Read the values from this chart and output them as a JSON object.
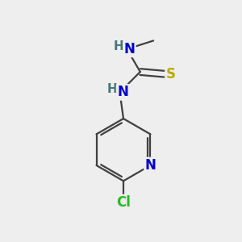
{
  "bg_color": "#eeeeee",
  "atom_colors": {
    "C": "#404040",
    "N": "#0000cc",
    "S": "#bbaa00",
    "Cl": "#22bb22",
    "H": "#447777"
  },
  "bond_color": "#404040",
  "bond_width": 1.6,
  "figsize": [
    3.0,
    3.0
  ],
  "dpi": 100
}
